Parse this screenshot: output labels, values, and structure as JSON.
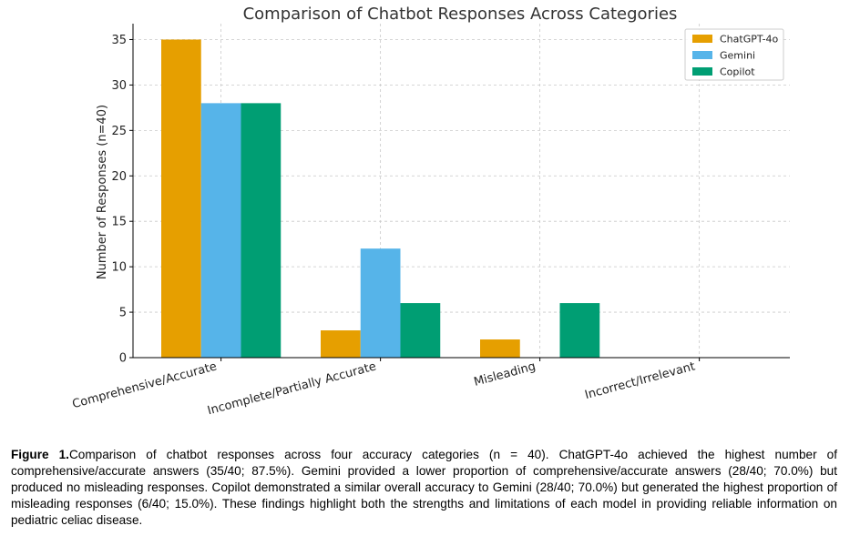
{
  "chart_data": {
    "type": "bar",
    "title": "Comparison of Chatbot Responses Across Categories",
    "xlabel": "",
    "ylabel": "Number of Responses (n=40)",
    "categories": [
      "Comprehensive/Accurate",
      "Incomplete/Partially Accurate",
      "Misleading",
      "Incorrect/Irrelevant"
    ],
    "series": [
      {
        "name": "ChatGPT-4o",
        "color": "#E69F00",
        "values": [
          35,
          3,
          2,
          0
        ]
      },
      {
        "name": "Gemini",
        "color": "#56B4E9",
        "values": [
          28,
          12,
          0,
          0
        ]
      },
      {
        "name": "Copilot",
        "color": "#009E73",
        "values": [
          28,
          6,
          6,
          0
        ]
      }
    ],
    "ylim": [
      0,
      36.75
    ],
    "yticks": [
      0,
      5,
      10,
      15,
      20,
      25,
      30,
      35
    ],
    "grid": true,
    "legend_position": "top-right"
  },
  "caption": {
    "label": "Figure 1.",
    "text": "Comparison of chatbot responses across four accuracy categories (n = 40). ChatGPT-4o achieved the highest number of comprehensive/accurate answers (35/40; 87.5%). Gemini provided a lower proportion of comprehensive/accurate answers (28/40; 70.0%) but produced no misleading responses. Copilot demonstrated a similar overall accuracy to Gemini (28/40; 70.0%) but generated the highest proportion of misleading responses (6/40; 15.0%). These findings highlight both the strengths and limitations of each model in providing reliable information on pediatric celiac disease."
  }
}
